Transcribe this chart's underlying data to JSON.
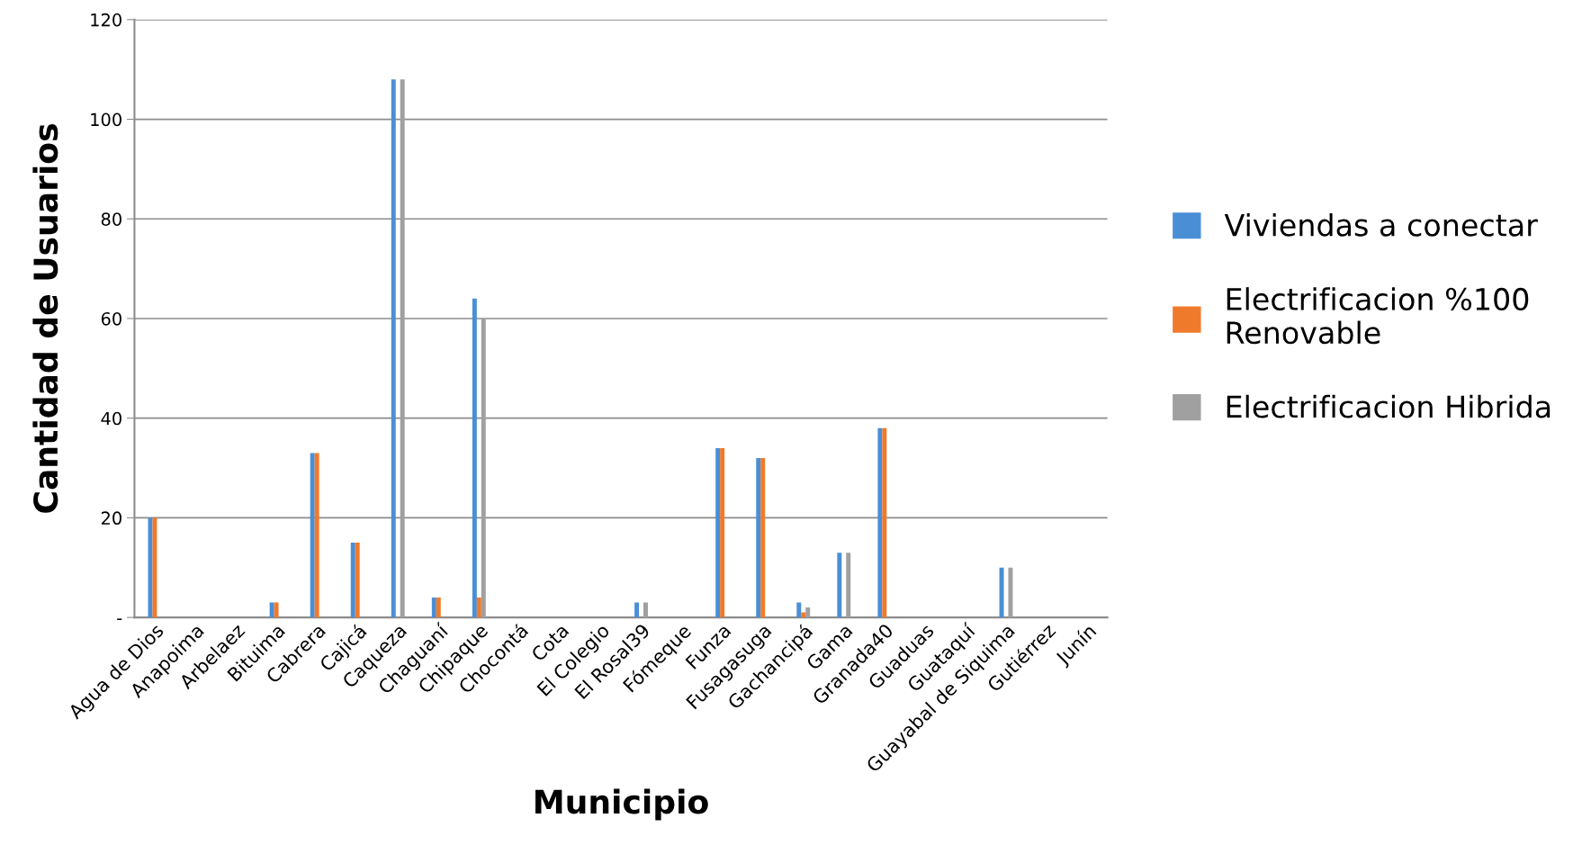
{
  "chart_data": {
    "type": "bar",
    "xlabel": "Municipio",
    "ylabel": "Cantidad de Usuarios",
    "categories": [
      "Agua de Dios",
      "Anapoima",
      "Arbelaez",
      "Bituima",
      "Cabrera",
      "Cajicá",
      "Caqueza",
      "Chaguaní",
      "Chipaque",
      "Chocontá",
      "Cota",
      "El Colegio",
      "El Rosal39",
      "Fómeque",
      "Funza",
      "Fusagasuga",
      "Gachancipá",
      "Gama",
      "Granada40",
      "Guaduas",
      "Guataquí",
      "Guayabal de Siquima",
      "Gutiérrez",
      "Junín"
    ],
    "series": [
      {
        "name": "Viviendas a conectar",
        "color": "#4a8fd6",
        "values": [
          20,
          0,
          0,
          3,
          33,
          15,
          108,
          4,
          64,
          0,
          0,
          0,
          3,
          0,
          34,
          32,
          3,
          13,
          38,
          0,
          0,
          10,
          0,
          0
        ]
      },
      {
        "name": "Electrificacion %100\nRenovable",
        "color": "#f07a2c",
        "values": [
          20,
          0,
          0,
          3,
          33,
          15,
          0,
          4,
          4,
          0,
          0,
          0,
          0,
          0,
          34,
          32,
          1,
          0,
          38,
          0,
          0,
          0,
          0,
          0
        ]
      },
      {
        "name": "Electrificacion Hibrida",
        "color": "#a0a0a0",
        "values": [
          0,
          0,
          0,
          0,
          0,
          0,
          108,
          0,
          60,
          0,
          0,
          0,
          3,
          0,
          0,
          0,
          2,
          13,
          0,
          0,
          0,
          10,
          0,
          0
        ]
      }
    ],
    "ylim": [
      0,
      120
    ],
    "yticks": [
      {
        "value": 0,
        "label": "-"
      },
      20,
      40,
      60,
      80,
      100,
      120
    ],
    "grid": "y",
    "legend": "right"
  }
}
